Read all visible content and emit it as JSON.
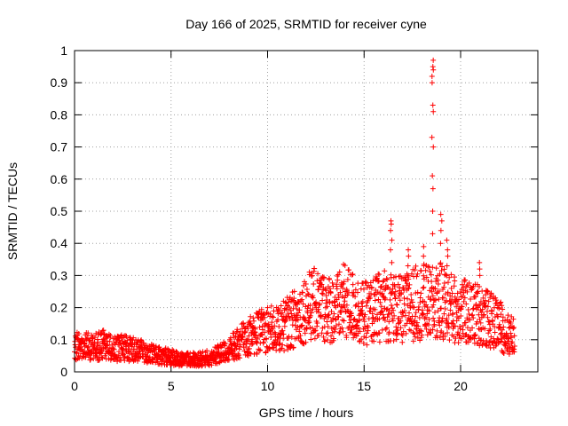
{
  "chart_data": {
    "type": "scatter",
    "title": "Day 166 of 2025, SRMTID for receiver cyne",
    "xlabel": "GPS time / hours",
    "ylabel": "SRMTID / TECUs",
    "xlim": [
      0,
      24
    ],
    "ylim": [
      0,
      1
    ],
    "xticks": [
      0,
      5,
      10,
      15,
      20
    ],
    "yticks": [
      0,
      0.1,
      0.2,
      0.3,
      0.4,
      0.5,
      0.6,
      0.7,
      0.8,
      0.9,
      1
    ],
    "xtick_labels": [
      "0",
      "5",
      "10",
      "15",
      "20"
    ],
    "ytick_labels": [
      "0",
      "0.1",
      "0.2",
      "0.3",
      "0.4",
      "0.5",
      "0.6",
      "0.7",
      "0.8",
      "0.9",
      "1"
    ],
    "grid": true,
    "marker": "+",
    "colors": {
      "series": "#ff0000",
      "grid": "#a0a0a0",
      "axis": "#000000"
    },
    "series": [
      {
        "name": "SRMTID",
        "trend": [
          {
            "x": 0.0,
            "y": 0.08
          },
          {
            "x": 0.5,
            "y": 0.08
          },
          {
            "x": 1.0,
            "y": 0.075
          },
          {
            "x": 1.5,
            "y": 0.085
          },
          {
            "x": 2.0,
            "y": 0.07
          },
          {
            "x": 2.5,
            "y": 0.075
          },
          {
            "x": 3.0,
            "y": 0.07
          },
          {
            "x": 3.5,
            "y": 0.065
          },
          {
            "x": 4.0,
            "y": 0.055
          },
          {
            "x": 4.5,
            "y": 0.05
          },
          {
            "x": 5.0,
            "y": 0.045
          },
          {
            "x": 5.5,
            "y": 0.04
          },
          {
            "x": 6.0,
            "y": 0.038
          },
          {
            "x": 6.5,
            "y": 0.04
          },
          {
            "x": 7.0,
            "y": 0.045
          },
          {
            "x": 7.5,
            "y": 0.055
          },
          {
            "x": 8.0,
            "y": 0.07
          },
          {
            "x": 8.5,
            "y": 0.09
          },
          {
            "x": 9.0,
            "y": 0.11
          },
          {
            "x": 9.5,
            "y": 0.12
          },
          {
            "x": 10.0,
            "y": 0.135
          },
          {
            "x": 10.5,
            "y": 0.13
          },
          {
            "x": 11.0,
            "y": 0.15
          },
          {
            "x": 11.5,
            "y": 0.17
          },
          {
            "x": 12.0,
            "y": 0.2
          },
          {
            "x": 12.5,
            "y": 0.21
          },
          {
            "x": 13.0,
            "y": 0.2
          },
          {
            "x": 13.5,
            "y": 0.19
          },
          {
            "x": 14.0,
            "y": 0.22
          },
          {
            "x": 14.5,
            "y": 0.2
          },
          {
            "x": 15.0,
            "y": 0.18
          },
          {
            "x": 15.5,
            "y": 0.19
          },
          {
            "x": 16.0,
            "y": 0.21
          },
          {
            "x": 16.5,
            "y": 0.2
          },
          {
            "x": 17.0,
            "y": 0.19
          },
          {
            "x": 17.5,
            "y": 0.21
          },
          {
            "x": 18.0,
            "y": 0.22
          },
          {
            "x": 18.5,
            "y": 0.21
          },
          {
            "x": 19.0,
            "y": 0.22
          },
          {
            "x": 19.5,
            "y": 0.2
          },
          {
            "x": 20.0,
            "y": 0.19
          },
          {
            "x": 20.5,
            "y": 0.18
          },
          {
            "x": 21.0,
            "y": 0.18
          },
          {
            "x": 21.5,
            "y": 0.16
          },
          {
            "x": 22.0,
            "y": 0.15
          },
          {
            "x": 22.3,
            "y": 0.12
          },
          {
            "x": 22.8,
            "y": 0.11
          }
        ],
        "spikes": [
          {
            "x": 16.4,
            "values": [
              0.34,
              0.38,
              0.41,
              0.44,
              0.46,
              0.47
            ]
          },
          {
            "x": 17.3,
            "values": [
              0.3,
              0.33,
              0.36,
              0.38
            ]
          },
          {
            "x": 18.1,
            "values": [
              0.33,
              0.36,
              0.39
            ]
          },
          {
            "x": 18.55,
            "values": [
              0.43,
              0.5,
              0.57,
              0.61,
              0.7,
              0.73,
              0.81,
              0.83,
              0.9,
              0.92,
              0.94,
              0.95,
              0.97
            ]
          },
          {
            "x": 19.0,
            "values": [
              0.4,
              0.44,
              0.47,
              0.49
            ]
          },
          {
            "x": 19.3,
            "values": [
              0.33,
              0.36,
              0.38,
              0.41
            ]
          },
          {
            "x": 21.0,
            "values": [
              0.3,
              0.32,
              0.34
            ]
          }
        ],
        "x_start": 0,
        "x_end": 22.8,
        "samples_per_hour": 90
      }
    ]
  }
}
